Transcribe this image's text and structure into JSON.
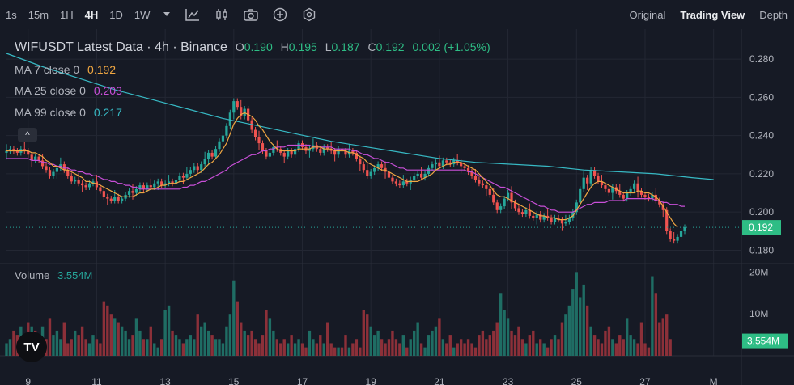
{
  "toolbar": {
    "timeframes": [
      "1s",
      "15m",
      "1H",
      "4H",
      "1D",
      "1W"
    ],
    "active_timeframe": "4H",
    "tools": [
      "chevron-down-icon",
      "line-chart-icon",
      "candles-icon",
      "camera-icon",
      "plus-circle-icon",
      "settings-icon"
    ],
    "views": [
      "Original",
      "Trading View",
      "Depth"
    ],
    "active_view": "Trading View"
  },
  "legend": {
    "symbol": "WIFUSDT Latest Data · 4h · Binance",
    "o_label": "O",
    "o": "0.190",
    "h_label": "H",
    "h": "0.195",
    "l_label": "L",
    "l": "0.187",
    "c_label": "C",
    "c": "0.192",
    "change": "0.002 (+1.05%)",
    "ma7_label": "MA 7 close 0",
    "ma7": "0.192",
    "ma25_label": "MA 25 close 0",
    "ma25": "0.203",
    "ma99_label": "MA 99 close 0",
    "ma99": "0.217",
    "volume_label": "Volume",
    "volume": "3.554M",
    "collapse": "^",
    "logo": "TV"
  },
  "colors": {
    "up": "#26a69a",
    "down": "#ef5350",
    "ma7": "#f0a742",
    "ma25": "#c84fd8",
    "ma99": "#37b9c4",
    "vol_up": "#1f6d64",
    "vol_down": "#8c3039",
    "last_price_bg": "#2ebd85"
  },
  "chart_data": {
    "type": "candlestick",
    "price_axis_ticks": [
      "0.280",
      "0.260",
      "0.240",
      "0.220",
      "0.200",
      "0.180"
    ],
    "price_ylim": [
      0.173,
      0.294
    ],
    "volume_axis_ticks": [
      "20M",
      "10M"
    ],
    "volume_ylim": [
      0,
      22
    ],
    "last_price": "0.192",
    "last_volume": "3.554M",
    "date_ticks": [
      {
        "label": "9",
        "index": 6
      },
      {
        "label": "11",
        "index": 25
      },
      {
        "label": "13",
        "index": 44
      },
      {
        "label": "15",
        "index": 63
      },
      {
        "label": "17",
        "index": 82
      },
      {
        "label": "19",
        "index": 101
      },
      {
        "label": "21",
        "index": 120
      },
      {
        "label": "23",
        "index": 139
      },
      {
        "label": "25",
        "index": 158
      },
      {
        "label": "27",
        "index": 177
      },
      {
        "label": "M",
        "index": 196
      }
    ],
    "close": [
      0.232,
      0.233,
      0.232,
      0.231,
      0.233,
      0.232,
      0.23,
      0.227,
      0.229,
      0.227,
      0.224,
      0.222,
      0.219,
      0.221,
      0.223,
      0.225,
      0.222,
      0.219,
      0.216,
      0.217,
      0.215,
      0.214,
      0.213,
      0.215,
      0.216,
      0.213,
      0.211,
      0.208,
      0.207,
      0.206,
      0.208,
      0.206,
      0.207,
      0.209,
      0.211,
      0.21,
      0.212,
      0.214,
      0.212,
      0.214,
      0.213,
      0.215,
      0.216,
      0.214,
      0.215,
      0.216,
      0.215,
      0.217,
      0.219,
      0.218,
      0.22,
      0.222,
      0.224,
      0.222,
      0.225,
      0.228,
      0.231,
      0.229,
      0.233,
      0.237,
      0.24,
      0.245,
      0.252,
      0.258,
      0.255,
      0.25,
      0.254,
      0.248,
      0.243,
      0.239,
      0.236,
      0.232,
      0.229,
      0.231,
      0.234,
      0.233,
      0.231,
      0.229,
      0.232,
      0.23,
      0.233,
      0.236,
      0.234,
      0.232,
      0.233,
      0.235,
      0.233,
      0.231,
      0.234,
      0.233,
      0.232,
      0.23,
      0.233,
      0.232,
      0.23,
      0.232,
      0.231,
      0.228,
      0.225,
      0.222,
      0.219,
      0.221,
      0.223,
      0.225,
      0.223,
      0.221,
      0.218,
      0.216,
      0.215,
      0.214,
      0.216,
      0.215,
      0.217,
      0.219,
      0.22,
      0.218,
      0.22,
      0.223,
      0.225,
      0.226,
      0.224,
      0.227,
      0.226,
      0.225,
      0.227,
      0.226,
      0.224,
      0.223,
      0.221,
      0.219,
      0.217,
      0.215,
      0.214,
      0.212,
      0.209,
      0.205,
      0.201,
      0.203,
      0.207,
      0.21,
      0.205,
      0.202,
      0.2,
      0.199,
      0.201,
      0.198,
      0.197,
      0.199,
      0.196,
      0.198,
      0.197,
      0.195,
      0.197,
      0.196,
      0.194,
      0.195,
      0.197,
      0.2,
      0.205,
      0.212,
      0.218,
      0.215,
      0.222,
      0.219,
      0.216,
      0.214,
      0.212,
      0.21,
      0.213,
      0.211,
      0.209,
      0.207,
      0.21,
      0.212,
      0.215,
      0.211,
      0.209,
      0.208,
      0.207,
      0.209,
      0.206,
      0.204,
      0.201,
      0.19,
      0.186,
      0.185,
      0.187,
      0.19,
      0.192
    ],
    "ma7": [
      0.232,
      0.232,
      0.232,
      0.232,
      0.232,
      0.232,
      0.232,
      0.231,
      0.231,
      0.23,
      0.229,
      0.227,
      0.226,
      0.224,
      0.224,
      0.223,
      0.222,
      0.222,
      0.221,
      0.22,
      0.219,
      0.218,
      0.216,
      0.216,
      0.215,
      0.215,
      0.214,
      0.213,
      0.212,
      0.211,
      0.21,
      0.209,
      0.208,
      0.208,
      0.208,
      0.208,
      0.209,
      0.21,
      0.21,
      0.211,
      0.212,
      0.212,
      0.213,
      0.214,
      0.214,
      0.215,
      0.215,
      0.215,
      0.216,
      0.216,
      0.217,
      0.218,
      0.219,
      0.22,
      0.221,
      0.223,
      0.225,
      0.226,
      0.228,
      0.23,
      0.233,
      0.236,
      0.241,
      0.246,
      0.249,
      0.251,
      0.252,
      0.251,
      0.25,
      0.248,
      0.245,
      0.243,
      0.24,
      0.237,
      0.235,
      0.233,
      0.232,
      0.232,
      0.232,
      0.232,
      0.232,
      0.233,
      0.233,
      0.233,
      0.233,
      0.234,
      0.234,
      0.234,
      0.233,
      0.233,
      0.233,
      0.232,
      0.232,
      0.232,
      0.232,
      0.231,
      0.231,
      0.23,
      0.229,
      0.228,
      0.226,
      0.225,
      0.224,
      0.223,
      0.222,
      0.222,
      0.221,
      0.22,
      0.219,
      0.218,
      0.217,
      0.216,
      0.216,
      0.216,
      0.216,
      0.217,
      0.218,
      0.219,
      0.22,
      0.222,
      0.223,
      0.224,
      0.225,
      0.225,
      0.226,
      0.226,
      0.226,
      0.225,
      0.224,
      0.223,
      0.222,
      0.22,
      0.218,
      0.216,
      0.214,
      0.211,
      0.209,
      0.208,
      0.208,
      0.207,
      0.206,
      0.205,
      0.204,
      0.203,
      0.202,
      0.201,
      0.2,
      0.199,
      0.198,
      0.198,
      0.197,
      0.197,
      0.197,
      0.196,
      0.196,
      0.196,
      0.197,
      0.198,
      0.201,
      0.204,
      0.207,
      0.21,
      0.213,
      0.215,
      0.216,
      0.216,
      0.215,
      0.214,
      0.213,
      0.212,
      0.211,
      0.21,
      0.21,
      0.21,
      0.21,
      0.211,
      0.211,
      0.21,
      0.21,
      0.209,
      0.208,
      0.206,
      0.203,
      0.2,
      0.197,
      0.194,
      0.192
    ],
    "ma25": [
      0.228,
      0.228,
      0.228,
      0.228,
      0.228,
      0.228,
      0.228,
      0.227,
      0.227,
      0.227,
      0.226,
      0.226,
      0.225,
      0.225,
      0.224,
      0.224,
      0.223,
      0.223,
      0.222,
      0.222,
      0.221,
      0.221,
      0.22,
      0.22,
      0.219,
      0.219,
      0.218,
      0.217,
      0.217,
      0.216,
      0.216,
      0.215,
      0.215,
      0.214,
      0.214,
      0.213,
      0.213,
      0.212,
      0.212,
      0.212,
      0.212,
      0.212,
      0.212,
      0.212,
      0.212,
      0.212,
      0.212,
      0.212,
      0.212,
      0.213,
      0.213,
      0.214,
      0.214,
      0.215,
      0.216,
      0.216,
      0.217,
      0.218,
      0.219,
      0.22,
      0.221,
      0.222,
      0.224,
      0.225,
      0.226,
      0.227,
      0.228,
      0.229,
      0.23,
      0.23,
      0.231,
      0.232,
      0.232,
      0.233,
      0.233,
      0.234,
      0.234,
      0.234,
      0.235,
      0.235,
      0.235,
      0.235,
      0.235,
      0.235,
      0.235,
      0.234,
      0.234,
      0.234,
      0.234,
      0.234,
      0.234,
      0.233,
      0.233,
      0.233,
      0.233,
      0.233,
      0.232,
      0.232,
      0.231,
      0.23,
      0.23,
      0.229,
      0.228,
      0.228,
      0.227,
      0.226,
      0.226,
      0.225,
      0.224,
      0.223,
      0.223,
      0.222,
      0.222,
      0.222,
      0.222,
      0.222,
      0.222,
      0.222,
      0.222,
      0.222,
      0.222,
      0.222,
      0.222,
      0.222,
      0.222,
      0.222,
      0.222,
      0.222,
      0.221,
      0.221,
      0.22,
      0.219,
      0.218,
      0.217,
      0.216,
      0.215,
      0.214,
      0.213,
      0.213,
      0.212,
      0.211,
      0.21,
      0.209,
      0.208,
      0.207,
      0.206,
      0.205,
      0.204,
      0.203,
      0.203,
      0.202,
      0.201,
      0.201,
      0.2,
      0.2,
      0.2,
      0.2,
      0.2,
      0.201,
      0.202,
      0.203,
      0.204,
      0.204,
      0.205,
      0.205,
      0.205,
      0.205,
      0.206,
      0.206,
      0.206,
      0.206,
      0.206,
      0.207,
      0.207,
      0.207,
      0.207,
      0.207,
      0.207,
      0.207,
      0.207,
      0.206,
      0.206,
      0.205,
      0.205,
      0.204,
      0.204,
      0.204,
      0.203,
      0.203
    ],
    "ma99_start": 0.283,
    "ma99_points": [
      [
        0,
        0.283
      ],
      [
        10,
        0.276
      ],
      [
        20,
        0.27
      ],
      [
        30,
        0.264
      ],
      [
        40,
        0.259
      ],
      [
        50,
        0.254
      ],
      [
        60,
        0.249
      ],
      [
        70,
        0.245
      ],
      [
        80,
        0.241
      ],
      [
        90,
        0.237
      ],
      [
        100,
        0.234
      ],
      [
        110,
        0.231
      ],
      [
        120,
        0.228
      ],
      [
        130,
        0.226
      ],
      [
        140,
        0.225
      ],
      [
        150,
        0.224
      ],
      [
        160,
        0.222
      ],
      [
        170,
        0.221
      ],
      [
        180,
        0.22
      ],
      [
        190,
        0.218
      ],
      [
        196,
        0.217
      ]
    ],
    "volume_m": [
      3,
      4,
      6,
      5,
      7,
      4,
      8,
      7,
      6,
      5,
      7,
      4,
      9,
      5,
      6,
      4,
      8,
      3,
      4,
      6,
      5,
      7,
      4,
      3,
      5,
      4,
      3,
      13,
      12,
      10,
      9,
      8,
      7,
      6,
      4,
      5,
      9,
      6,
      4,
      4,
      7,
      3,
      2,
      4,
      11,
      12,
      6,
      5,
      4,
      3,
      4,
      5,
      4,
      10,
      7,
      8,
      6,
      5,
      4,
      4,
      3,
      7,
      10,
      18,
      13,
      8,
      6,
      5,
      6,
      4,
      3,
      5,
      11,
      9,
      6,
      4,
      3,
      4,
      3,
      5,
      3,
      4,
      3,
      2,
      6,
      4,
      3,
      5,
      3,
      8,
      3,
      2,
      2,
      2,
      5,
      2,
      3,
      4,
      2,
      11,
      10,
      7,
      5,
      6,
      4,
      3,
      4,
      6,
      4,
      3,
      5,
      2,
      4,
      6,
      8,
      3,
      2,
      5,
      6,
      7,
      9,
      4,
      3,
      5,
      2,
      3,
      4,
      3,
      4,
      3,
      2,
      5,
      6,
      4,
      5,
      6,
      8,
      15,
      11,
      9,
      6,
      5,
      7,
      4,
      3,
      5,
      6,
      3,
      4,
      3,
      2,
      4,
      5,
      4,
      8,
      10,
      12,
      16,
      20,
      14,
      17,
      12,
      7,
      5,
      4,
      3,
      6,
      7,
      4,
      3,
      5,
      4,
      9,
      5,
      4,
      3,
      8,
      3,
      2,
      19,
      15,
      8,
      9,
      10,
      4
    ],
    "volume_up": [
      1,
      1,
      0,
      0,
      1,
      0,
      0,
      1,
      0,
      0,
      1,
      0,
      0,
      1,
      1,
      1,
      0,
      0,
      0,
      1,
      0,
      0,
      0,
      1,
      1,
      0,
      0,
      0,
      0,
      0,
      1,
      0,
      1,
      1,
      1,
      0,
      1,
      1,
      0,
      1,
      0,
      1,
      1,
      0,
      1,
      1,
      0,
      1,
      1,
      0,
      1,
      1,
      1,
      0,
      1,
      1,
      1,
      0,
      1,
      1,
      1,
      1,
      1,
      1,
      0,
      0,
      1,
      0,
      0,
      0,
      0,
      0,
      0,
      1,
      1,
      0,
      0,
      0,
      1,
      0,
      1,
      1,
      0,
      0,
      1,
      1,
      0,
      0,
      1,
      0,
      0,
      0,
      1,
      0,
      0,
      1,
      0,
      0,
      0,
      0,
      0,
      1,
      1,
      1,
      0,
      0,
      0,
      0,
      0,
      0,
      1,
      0,
      1,
      1,
      1,
      0,
      1,
      1,
      1,
      1,
      0,
      1,
      0,
      0,
      1,
      0,
      0,
      0,
      0,
      0,
      0,
      0,
      0,
      0,
      0,
      0,
      0,
      1,
      1,
      1,
      0,
      0,
      0,
      0,
      1,
      0,
      0,
      1,
      0,
      1,
      0,
      0,
      1,
      0,
      0,
      1,
      1,
      1,
      1,
      1,
      1,
      0,
      1,
      0,
      0,
      0,
      0,
      0,
      1,
      0,
      0,
      0,
      1,
      1,
      1,
      0,
      0,
      0,
      0,
      1,
      0,
      0,
      0,
      0,
      0,
      0,
      1,
      1,
      1
    ]
  }
}
